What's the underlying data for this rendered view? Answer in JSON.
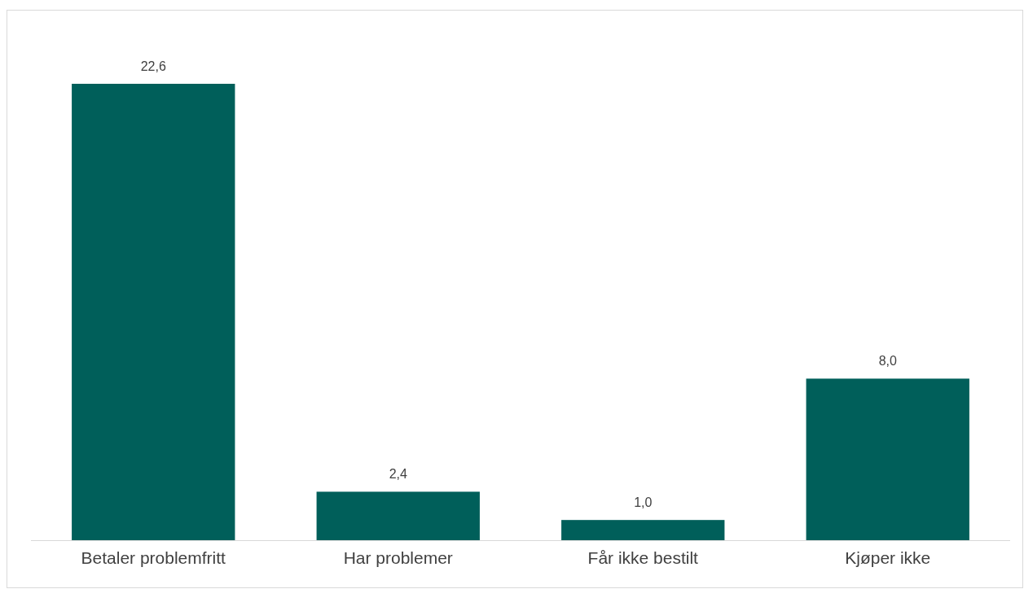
{
  "chart_data": {
    "type": "bar",
    "categories": [
      "Betaler problemfritt",
      "Har problemer",
      "Får ikke bestilt",
      "Kjøper ikke"
    ],
    "values": [
      22.6,
      2.4,
      1.0,
      8.0
    ],
    "value_labels": [
      "22,6",
      "2,4",
      "1,0",
      "8,0"
    ],
    "color": "#005f5a"
  }
}
